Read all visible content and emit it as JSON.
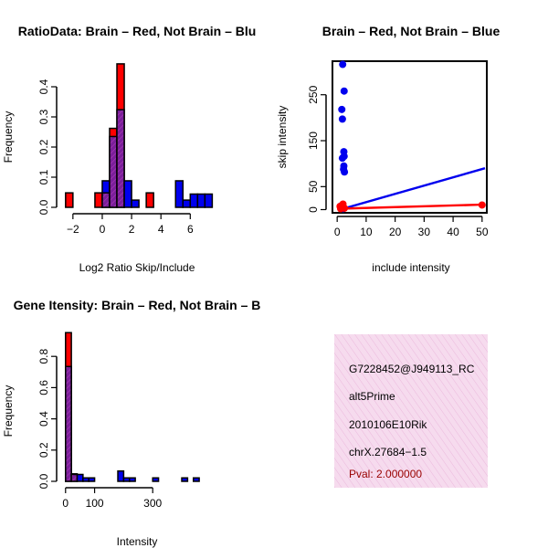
{
  "colors": {
    "red": "#ff0000",
    "blue": "#0000ee",
    "overlap": "#7a1f9a",
    "hatch": "#ff44aa",
    "pink_bg": "#f5d3ea",
    "pval": "#990000"
  },
  "chart_data": [
    {
      "id": "ratio_hist",
      "type": "bar",
      "title": "RatioData: Brain – Red, Not Brain – Blu",
      "xlabel": "Log2 Ratio Skip/Include",
      "ylabel": "Frequency",
      "xlim": [
        -2.8,
        7.6
      ],
      "ylim": [
        0,
        0.5
      ],
      "xticks": [
        -2,
        0,
        2,
        4,
        6
      ],
      "xtick_labels": [
        "−2",
        "0",
        "2",
        "4",
        "6"
      ],
      "yticks": [
        0,
        0.1,
        0.2,
        0.3,
        0.4
      ],
      "ytick_labels": [
        "0.0",
        "0.1",
        "0.2",
        "0.3",
        "0.4"
      ],
      "bin_width": 0.5,
      "series": [
        {
          "name": "Brain",
          "color": "red",
          "bins": [
            [
              -2.5,
              0.048
            ],
            [
              -0.5,
              0.048
            ],
            [
              0,
              0.048
            ],
            [
              0.5,
              0.262
            ],
            [
              1,
              0.476
            ],
            [
              3,
              0.048
            ]
          ]
        },
        {
          "name": "Not Brain",
          "color": "blue",
          "bins": [
            [
              0,
              0.088
            ],
            [
              0.5,
              0.235
            ],
            [
              1,
              0.324
            ],
            [
              1.5,
              0.088
            ],
            [
              2,
              0.024
            ],
            [
              5,
              0.088
            ],
            [
              5.5,
              0.024
            ],
            [
              6,
              0.044
            ],
            [
              6.5,
              0.044
            ],
            [
              7,
              0.044
            ]
          ]
        }
      ]
    },
    {
      "id": "scatter",
      "type": "scatter",
      "title": "Brain – Red, Not Brain – Blue",
      "xlabel": "include intensity",
      "ylabel": "skip intensity",
      "xlim": [
        -1,
        51
      ],
      "ylim": [
        -3,
        323
      ],
      "xticks": [
        0,
        10,
        20,
        30,
        40,
        50
      ],
      "xtick_labels": [
        "0",
        "10",
        "20",
        "30",
        "40",
        "50"
      ],
      "yticks": [
        0,
        50,
        150,
        250
      ],
      "ytick_labels": [
        "0",
        "50",
        "150",
        "250"
      ],
      "series": [
        {
          "name": "Not Brain",
          "color": "blue",
          "points": [
            [
              2,
              4
            ],
            [
              1.5,
              5
            ],
            [
              1.8,
              6
            ],
            [
              2.2,
              3
            ],
            [
              1.3,
              8
            ],
            [
              2,
              2
            ],
            [
              2.5,
              82
            ],
            [
              2.2,
              88
            ],
            [
              2.3,
              95
            ],
            [
              1.8,
              112
            ],
            [
              2.4,
              116
            ],
            [
              2.3,
              126
            ],
            [
              1.8,
              197
            ],
            [
              1.6,
              218
            ],
            [
              2.4,
              258
            ],
            [
              1.9,
              316
            ]
          ],
          "fit": [
            [
              1,
              0
            ],
            [
              51,
              90
            ]
          ]
        },
        {
          "name": "Brain",
          "color": "red",
          "points": [
            [
              1,
              7
            ],
            [
              1.5,
              5
            ],
            [
              2,
              12
            ],
            [
              2.5,
              3
            ],
            [
              1.2,
              2
            ],
            [
              50,
              10
            ]
          ],
          "fit": [
            [
              1,
              2
            ],
            [
              51,
              11
            ]
          ]
        }
      ]
    },
    {
      "id": "intensity_hist",
      "type": "bar",
      "title": "Gene Itensity: Brain – Red, Not Brain – B",
      "xlabel": "Intensity",
      "ylabel": "Frequency",
      "xlim": [
        -15,
        510
      ],
      "ylim": [
        0,
        1.0
      ],
      "xticks": [
        0,
        100,
        300
      ],
      "xtick_labels": [
        "0",
        "100",
        "300"
      ],
      "yticks": [
        0,
        0.2,
        0.4,
        0.6,
        0.8
      ],
      "ytick_labels": [
        "0.0",
        "0.2",
        "0.4",
        "0.6",
        "0.8"
      ],
      "bin_width": 20,
      "series": [
        {
          "name": "Brain",
          "color": "red",
          "bins": [
            [
              0,
              0.952
            ],
            [
              20,
              0.048
            ]
          ]
        },
        {
          "name": "Not Brain",
          "color": "blue",
          "bins": [
            [
              0,
              0.735
            ],
            [
              20,
              0.044
            ],
            [
              40,
              0.044
            ],
            [
              60,
              0.022
            ],
            [
              80,
              0.022
            ],
            [
              180,
              0.066
            ],
            [
              200,
              0.022
            ],
            [
              220,
              0.022
            ],
            [
              300,
              0.022
            ],
            [
              400,
              0.022
            ],
            [
              440,
              0.022
            ]
          ]
        }
      ]
    }
  ],
  "info_panel": {
    "probe_id": "G7228452@J949113_RC",
    "event_type": "alt5Prime",
    "gene": "2010106E10Rik",
    "locus": "chrX.27684−1.5",
    "pval": "Pval: 2.000000"
  }
}
